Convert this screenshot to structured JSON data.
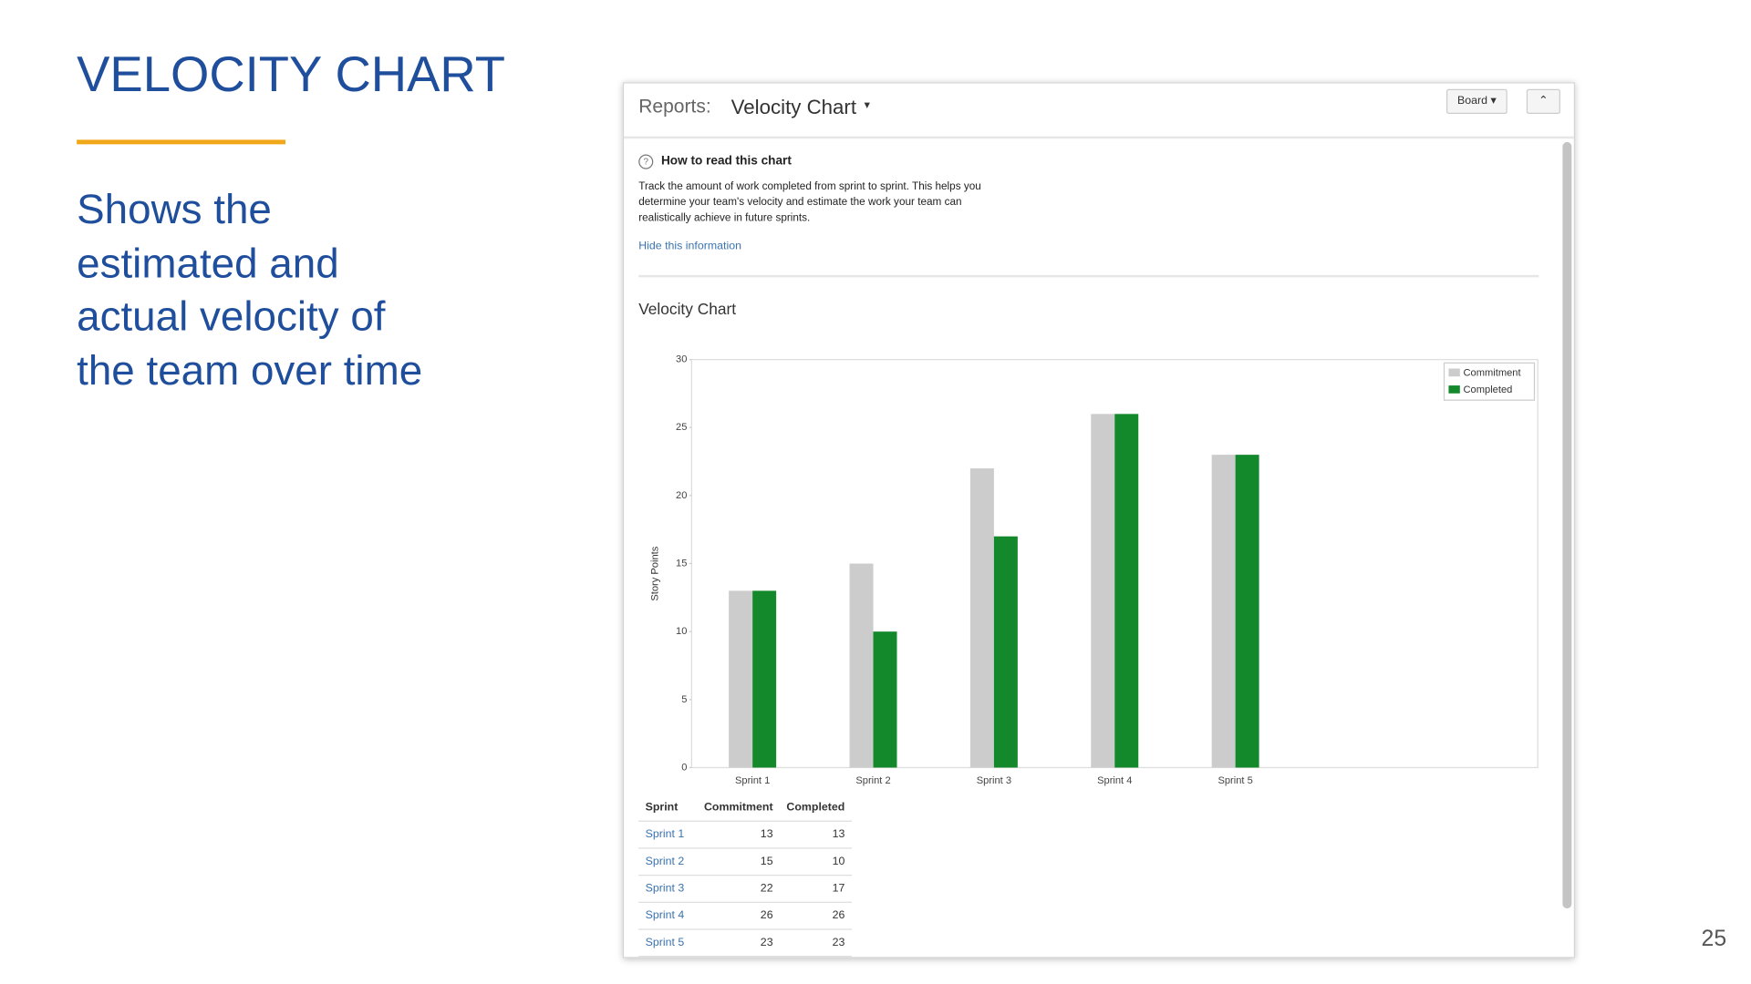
{
  "slide": {
    "title": "VELOCITY CHART",
    "body_lines": [
      "Shows the",
      "estimated and",
      "actual velocity of",
      "the team over time"
    ],
    "page_number": "25"
  },
  "screenshot": {
    "header_label": "Reports:",
    "report_name": "Velocity Chart",
    "board_button": "Board",
    "info_title": "How to read this chart",
    "info_lines": [
      "Track the amount of work completed from sprint to sprint. This helps you",
      "determine your team's velocity and estimate the work your team can",
      "realistically achieve in future sprints."
    ],
    "info_link": "Hide this information",
    "table_headers": [
      "Sprint",
      "Commitment",
      "Completed"
    ]
  },
  "chart_data": {
    "type": "bar",
    "title": "Velocity Chart",
    "y_label": "Story Points",
    "categories": [
      "Sprint 1",
      "Sprint 2",
      "Sprint 3",
      "Sprint 4",
      "Sprint 5"
    ],
    "series": [
      {
        "name": "Commitment",
        "color": "#cccccc",
        "values": [
          13,
          15,
          22,
          26,
          23
        ]
      },
      {
        "name": "Completed",
        "color": "#14892c",
        "values": [
          13,
          10,
          17,
          26,
          23
        ]
      }
    ],
    "ylim": [
      0,
      30
    ],
    "yticks": [
      0,
      5,
      10,
      15,
      20,
      25,
      30
    ],
    "grid": false,
    "legend": "top-right"
  }
}
